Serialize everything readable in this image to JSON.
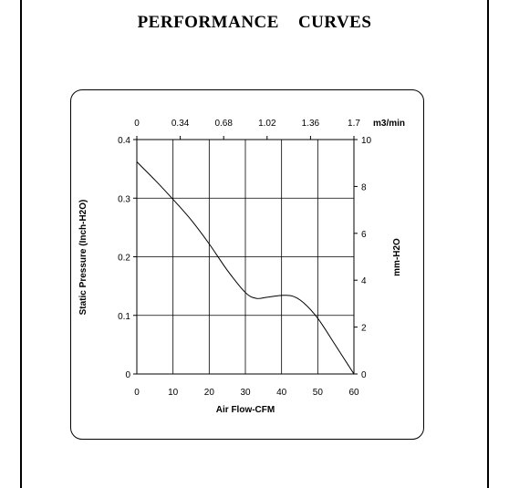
{
  "page": {
    "title": "PERFORMANCE    CURVES"
  },
  "chart_data": {
    "type": "line",
    "xlabel": "Air Flow-CFM",
    "ylabel": "Static Pressure (Inch-H2O)",
    "y2label": "mm-H2O",
    "x2unit": "m3/min",
    "xlim": [
      0,
      60
    ],
    "ylim": [
      0,
      0.4
    ],
    "y2lim": [
      0,
      10
    ],
    "x2lim": [
      0,
      1.7
    ],
    "xticks": [
      "0",
      "10",
      "20",
      "30",
      "40",
      "50",
      "60"
    ],
    "yticks": [
      "0",
      "0.1",
      "0.2",
      "0.3",
      "0.4"
    ],
    "x2ticks": [
      "0",
      "0.34",
      "0.68",
      "1.02",
      "1.36",
      "1.7"
    ],
    "y2ticks": [
      "0",
      "2",
      "4",
      "6",
      "8",
      "10"
    ],
    "grid": true,
    "series": [
      {
        "x": [
          0,
          5,
          10,
          15,
          20,
          25,
          30,
          33,
          36,
          40,
          43,
          46,
          50,
          55,
          60
        ],
        "y": [
          0.362,
          0.331,
          0.298,
          0.263,
          0.222,
          0.177,
          0.139,
          0.129,
          0.131,
          0.134,
          0.133,
          0.122,
          0.095,
          0.048,
          0.0
        ]
      }
    ]
  }
}
